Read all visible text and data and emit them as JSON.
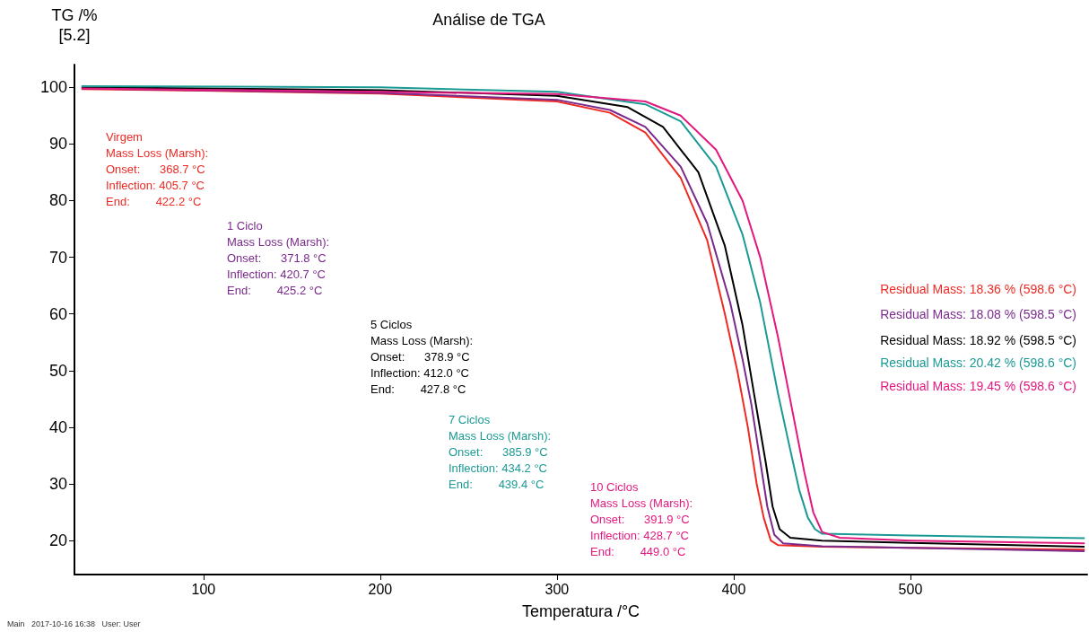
{
  "chart_data": {
    "type": "line",
    "title": "Análise de TGA",
    "xlabel": "Temperatura /°C",
    "ylabel": "TG /%\n[5.2]",
    "xlim": [
      27,
      600
    ],
    "ylim": [
      14,
      104
    ],
    "xticks": [
      100,
      200,
      300,
      400,
      500
    ],
    "yticks": [
      20,
      30,
      40,
      50,
      60,
      70,
      80,
      90,
      100
    ],
    "grid": false,
    "marker": "none",
    "line_style": "solid",
    "series": [
      {
        "color": "#ee2a24",
        "x": [
          31,
          100,
          200,
          300,
          330,
          350,
          370,
          385,
          395,
          402,
          408,
          413,
          417,
          421,
          425,
          450,
          500,
          598.6
        ],
        "values": [
          99.7,
          99.4,
          98.9,
          97.5,
          95.5,
          92,
          84,
          73,
          60,
          50,
          40,
          30,
          24,
          20,
          19.2,
          18.9,
          18.7,
          18.4
        ]
      },
      {
        "color": "#7a2a8c",
        "x": [
          31,
          200,
          300,
          330,
          350,
          370,
          385,
          398,
          405,
          410,
          415,
          419,
          423,
          428,
          450,
          500,
          598.5
        ],
        "values": [
          99.8,
          99,
          97.8,
          96,
          93,
          86,
          76,
          62,
          52,
          44,
          34,
          26,
          21,
          19.5,
          19,
          18.7,
          18.1
        ]
      },
      {
        "color": "#000000",
        "x": [
          31,
          200,
          300,
          340,
          360,
          380,
          395,
          405,
          412,
          418,
          422,
          426,
          432,
          450,
          500,
          598.5
        ],
        "values": [
          100,
          99.5,
          98.5,
          96.5,
          93,
          85,
          72,
          58,
          45,
          34,
          26,
          22,
          20.5,
          20,
          19.6,
          18.9
        ]
      },
      {
        "color": "#1b9a95",
        "x": [
          31,
          200,
          300,
          350,
          370,
          390,
          405,
          415,
          425,
          432,
          437,
          442,
          446,
          450,
          500,
          598.6
        ],
        "values": [
          100.2,
          100,
          99.2,
          97,
          94,
          86,
          74,
          62,
          46,
          36,
          29,
          24,
          22,
          21.2,
          20.9,
          20.4
        ]
      },
      {
        "color": "#e2187f",
        "x": [
          31,
          200,
          300,
          350,
          370,
          390,
          405,
          415,
          425,
          430,
          435,
          440,
          445,
          450,
          460,
          500,
          598.6
        ],
        "values": [
          99.8,
          99.2,
          98.8,
          97.5,
          95,
          89,
          80,
          70,
          56,
          48,
          40,
          32,
          25,
          21.5,
          20.5,
          20,
          19.5
        ]
      }
    ],
    "annotations": [
      "Virgem\nMass Loss (Marsh):\nOnset:      368.7 °C\nInflection: 405.7 °C\nEnd:        422.2 °C",
      "1 Ciclo\nMass Loss (Marsh):\nOnset:      371.8 °C\nInflection: 420.7 °C\nEnd:        425.2 °C",
      "5 Ciclos\nMass Loss (Marsh):\nOnset:      378.9 °C\nInflection: 412.0 °C\nEnd:        427.8 °C",
      "7 Ciclos\nMass Loss (Marsh):\nOnset:      385.9 °C\nInflection: 434.2 °C\nEnd:        439.4 °C",
      "10 Ciclos\nMass Loss (Marsh):\nOnset:      391.9 °C\nInflection: 428.7 °C\nEnd:        449.0 °C",
      "Residual Mass: 18.36 % (598.6 °C)",
      "Residual Mass: 18.08 % (598.5 °C)",
      "Residual Mass: 18.92 % (598.5 °C)",
      "Residual Mass: 20.42 % (598.6 °C)",
      "Residual Mass: 19.45 % (598.6 °C)",
      "Main   2017-10-16 16:38   User: User"
    ]
  }
}
